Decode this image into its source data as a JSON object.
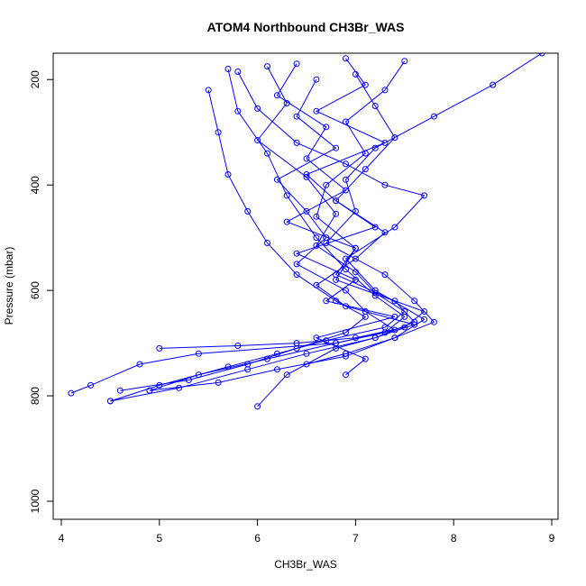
{
  "chart_data": {
    "type": "scatter",
    "title": "ATOM4 Northbound CH3Br_WAS",
    "xlabel": "CH3Br_WAS",
    "ylabel": "Pressure (mbar)",
    "xlim": [
      4,
      9
    ],
    "ylim": [
      1000,
      150
    ],
    "y_reversed": true,
    "x_ticks": [
      "4",
      "5",
      "6",
      "7",
      "8",
      "9"
    ],
    "y_ticks": [
      "200",
      "400",
      "600",
      "800",
      "1000"
    ],
    "grid": false,
    "legend": "none",
    "marker": "open-circle",
    "connected": true,
    "color": "#0000ff",
    "series": [
      {
        "x": [
          6.9,
          7.1,
          6.6,
          7.3,
          6.5,
          6.8,
          7.2,
          6.4,
          7.0,
          6.7,
          7.4,
          6.6,
          7.1,
          6.9
        ],
        "y": [
          160,
          210,
          260,
          320,
          380,
          430,
          480,
          530,
          580,
          620,
          650,
          690,
          730,
          760
        ]
      },
      {
        "x": [
          5.7,
          5.8,
          6.1,
          6.3,
          6.6,
          6.9,
          7.2,
          7.5,
          7.3,
          6.8,
          5.4,
          4.8,
          4.3,
          4.1
        ],
        "y": [
          180,
          260,
          340,
          420,
          500,
          560,
          610,
          650,
          680,
          700,
          720,
          740,
          780,
          795
        ]
      },
      {
        "x": [
          6.4,
          6.2,
          6.7,
          6.5,
          6.9,
          6.3,
          7.0,
          6.8,
          7.4,
          7.6,
          7.2,
          6.5,
          5.9,
          5.2,
          4.5
        ],
        "y": [
          170,
          230,
          290,
          350,
          410,
          470,
          520,
          570,
          620,
          660,
          690,
          720,
          750,
          785,
          810
        ]
      },
      {
        "x": [
          7.5,
          7.3,
          6.9,
          7.1,
          6.7,
          6.6,
          7.0,
          6.8,
          7.7,
          7.5,
          7.0,
          6.4,
          5.8,
          5.0
        ],
        "y": [
          165,
          220,
          280,
          340,
          400,
          460,
          520,
          580,
          640,
          670,
          690,
          700,
          705,
          710
        ]
      },
      {
        "x": [
          5.5,
          5.6,
          5.7,
          5.9,
          6.1,
          6.4,
          6.8,
          7.1,
          6.9,
          6.4,
          5.9,
          5.3,
          4.6
        ],
        "y": [
          220,
          300,
          380,
          450,
          510,
          570,
          620,
          650,
          680,
          710,
          740,
          770,
          790
        ]
      },
      {
        "x": [
          8.9,
          8.4,
          7.8,
          7.2,
          6.9,
          7.0,
          6.7,
          7.3,
          7.6,
          7.8,
          7.4,
          6.9,
          6.5
        ],
        "y": [
          150,
          210,
          270,
          330,
          390,
          450,
          510,
          570,
          620,
          660,
          690,
          720,
          740
        ]
      },
      {
        "x": [
          6.1,
          6.3,
          6.0,
          6.5,
          6.8,
          6.6,
          7.0,
          7.2,
          7.5,
          7.3,
          6.7,
          6.2,
          5.7,
          5.0,
          4.5
        ],
        "y": [
          175,
          245,
          315,
          385,
          455,
          515,
          565,
          605,
          640,
          670,
          695,
          720,
          745,
          780,
          810
        ]
      },
      {
        "x": [
          7.0,
          7.2,
          7.4,
          7.1,
          6.8,
          7.3,
          7.0,
          6.6,
          6.9,
          7.6,
          7.2,
          6.8,
          6.3,
          6.0
        ],
        "y": [
          190,
          250,
          310,
          370,
          430,
          490,
          540,
          590,
          630,
          665,
          690,
          710,
          760,
          820
        ]
      },
      {
        "x": [
          6.6,
          6.4,
          6.8,
          6.2,
          6.5,
          6.7,
          6.4,
          6.9,
          7.1,
          7.4,
          6.8,
          6.1,
          5.4,
          4.9
        ],
        "y": [
          200,
          270,
          330,
          390,
          450,
          500,
          550,
          600,
          640,
          675,
          700,
          730,
          760,
          790
        ]
      },
      {
        "x": [
          5.8,
          6.0,
          6.4,
          6.9,
          7.3,
          7.7,
          7.4,
          6.9,
          7.2,
          7.7,
          7.4,
          6.9,
          6.2,
          5.6,
          4.9
        ],
        "y": [
          185,
          255,
          320,
          360,
          400,
          420,
          480,
          540,
          600,
          655,
          690,
          725,
          750,
          775,
          790
        ]
      }
    ]
  }
}
